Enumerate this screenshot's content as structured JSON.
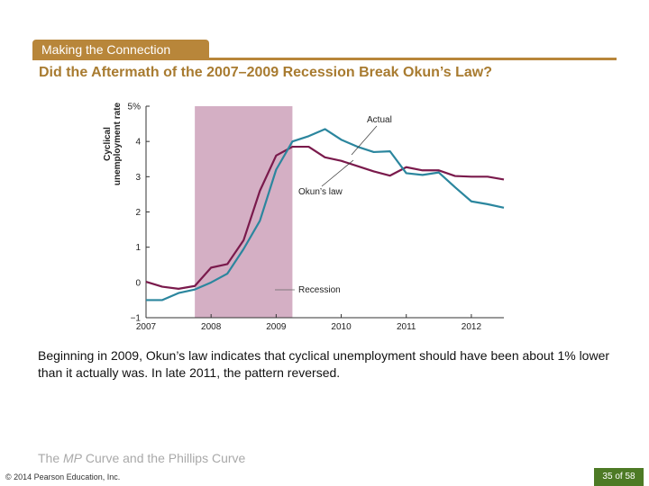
{
  "header": {
    "section_tab": "Making the Connection",
    "title": "Did the Aftermath of the 2007–2009 Recession Break Okun’s Law?"
  },
  "chart_data": {
    "type": "line",
    "ylabel": "Cyclical unemployment rate",
    "ylim": [
      -1,
      5
    ],
    "yticks": [
      "−1",
      "0",
      "1",
      "2",
      "3",
      "4",
      "5%"
    ],
    "xlim": [
      2007,
      2012.5
    ],
    "xticks": [
      "2007",
      "2008",
      "2009",
      "2010",
      "2011",
      "2012"
    ],
    "recession": {
      "label": "Recession",
      "start": 2007.75,
      "end": 2009.25,
      "color": "#d4afc4"
    },
    "x": [
      2007,
      2007.25,
      2007.5,
      2007.75,
      2008,
      2008.25,
      2008.5,
      2008.75,
      2009,
      2009.25,
      2009.5,
      2009.75,
      2010,
      2010.25,
      2010.5,
      2010.75,
      2011,
      2011.25,
      2011.5,
      2011.75,
      2012,
      2012.25,
      2012.5
    ],
    "series": [
      {
        "name": "Actual",
        "color": "#2b869e",
        "values": [
          -0.5,
          -0.5,
          -0.3,
          -0.2,
          0.0,
          0.25,
          0.95,
          1.75,
          3.2,
          4.0,
          4.15,
          4.35,
          4.05,
          3.85,
          3.7,
          3.72,
          3.1,
          3.05,
          3.12,
          2.7,
          2.3,
          2.22,
          2.12
        ]
      },
      {
        "name": "Okun’s law",
        "color": "#7a1a4c",
        "values": [
          0.02,
          -0.12,
          -0.18,
          -0.1,
          0.42,
          0.52,
          1.2,
          2.6,
          3.6,
          3.85,
          3.85,
          3.55,
          3.45,
          3.3,
          3.15,
          3.03,
          3.27,
          3.18,
          3.18,
          3.02,
          3.0,
          3.0,
          2.92
        ]
      }
    ]
  },
  "body_text": "Beginning in 2009, Okun’s law indicates that cyclical unemployment should have been about 1% lower than it actually was. In late 2011, the pattern reversed.",
  "footer": {
    "title_pre": "The ",
    "title_em": "MP",
    "title_post": " Curve and the Phillips Curve",
    "copyright": "© 2014 Pearson Education, Inc.",
    "page": "35 of 58"
  }
}
